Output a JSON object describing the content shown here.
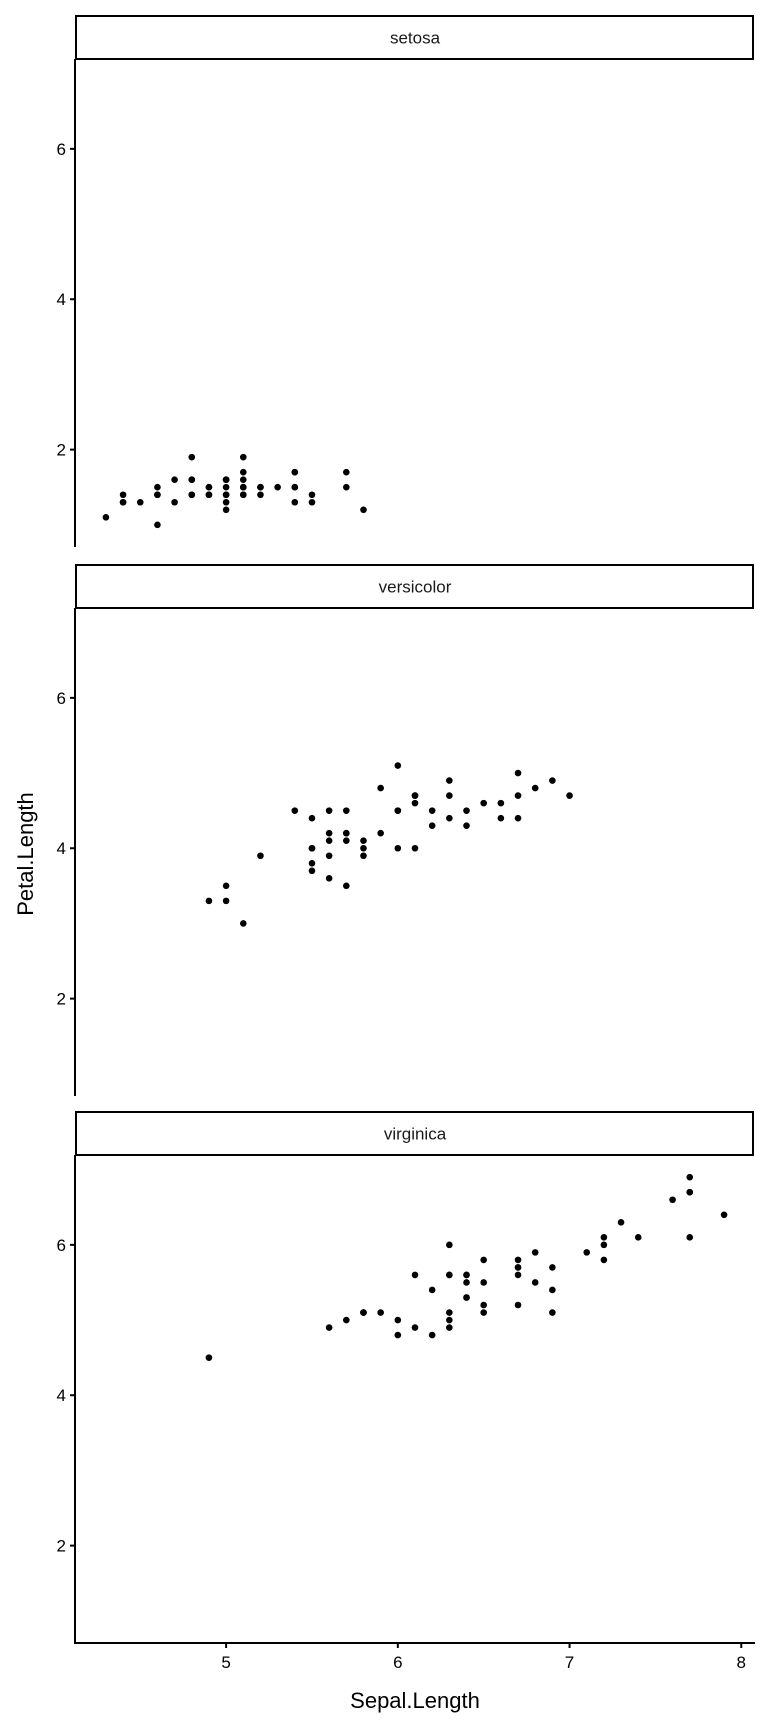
{
  "chart_data": {
    "type": "scatter",
    "xlabel": "Sepal.Length",
    "ylabel": "Petal.Length",
    "xlim": [
      4.12,
      8.08
    ],
    "ylim": [
      0.705,
      7.195
    ],
    "xticks": [
      "5",
      "6",
      "7",
      "8"
    ],
    "xtick_values": [
      5,
      6,
      7,
      8
    ],
    "yticks": [
      "2",
      "4",
      "6"
    ],
    "ytick_values": [
      2,
      4,
      6
    ],
    "grid": false,
    "point_color": "#000000",
    "panels": [
      {
        "name": "setosa",
        "x": [
          5.1,
          4.9,
          4.7,
          4.6,
          5.0,
          5.4,
          4.6,
          5.0,
          4.4,
          4.9,
          5.4,
          4.8,
          4.8,
          4.3,
          5.8,
          5.7,
          5.4,
          5.1,
          5.7,
          5.1,
          5.4,
          5.1,
          4.6,
          5.1,
          4.8,
          5.0,
          5.0,
          5.2,
          5.2,
          4.7,
          4.8,
          5.4,
          5.2,
          5.5,
          4.9,
          5.0,
          5.5,
          4.9,
          4.4,
          5.1,
          5.0,
          4.5,
          4.4,
          5.0,
          5.1,
          4.8,
          5.1,
          4.6,
          5.3,
          5.0
        ],
        "y": [
          1.4,
          1.4,
          1.3,
          1.5,
          1.4,
          1.7,
          1.4,
          1.5,
          1.4,
          1.5,
          1.5,
          1.6,
          1.4,
          1.1,
          1.2,
          1.5,
          1.3,
          1.4,
          1.7,
          1.5,
          1.7,
          1.5,
          1.0,
          1.7,
          1.9,
          1.6,
          1.6,
          1.5,
          1.4,
          1.6,
          1.6,
          1.5,
          1.5,
          1.4,
          1.5,
          1.2,
          1.3,
          1.4,
          1.3,
          1.5,
          1.3,
          1.3,
          1.3,
          1.6,
          1.9,
          1.4,
          1.6,
          1.4,
          1.5,
          1.4
        ]
      },
      {
        "name": "versicolor",
        "x": [
          7.0,
          6.4,
          6.9,
          5.5,
          6.5,
          5.7,
          6.3,
          4.9,
          6.6,
          5.2,
          5.0,
          5.9,
          6.0,
          6.1,
          5.6,
          6.7,
          5.6,
          5.8,
          6.2,
          5.6,
          5.9,
          6.1,
          6.3,
          6.1,
          6.4,
          6.6,
          6.8,
          6.7,
          6.0,
          5.7,
          5.5,
          5.5,
          5.8,
          6.0,
          5.4,
          6.0,
          6.7,
          6.3,
          5.6,
          5.5,
          5.5,
          6.1,
          5.8,
          5.0,
          5.6,
          5.7,
          5.7,
          6.2,
          5.1,
          5.7
        ],
        "y": [
          4.7,
          4.5,
          4.9,
          4.0,
          4.6,
          4.5,
          4.7,
          3.3,
          4.6,
          3.9,
          3.5,
          4.2,
          4.0,
          4.7,
          3.6,
          4.4,
          4.5,
          4.1,
          4.5,
          3.9,
          4.8,
          4.0,
          4.9,
          4.7,
          4.3,
          4.4,
          4.8,
          5.0,
          4.5,
          3.5,
          3.8,
          3.7,
          3.9,
          5.1,
          4.5,
          4.5,
          4.7,
          4.4,
          4.1,
          4.0,
          4.4,
          4.6,
          4.0,
          3.3,
          4.2,
          4.2,
          4.2,
          4.3,
          3.0,
          4.1
        ]
      },
      {
        "name": "virginica",
        "x": [
          6.3,
          5.8,
          7.1,
          6.3,
          6.5,
          7.6,
          4.9,
          7.3,
          6.7,
          7.2,
          6.5,
          6.4,
          6.8,
          5.7,
          5.8,
          6.4,
          6.5,
          7.7,
          7.7,
          6.0,
          6.9,
          5.6,
          7.7,
          6.3,
          6.7,
          7.2,
          6.2,
          6.1,
          6.4,
          7.2,
          7.4,
          7.9,
          6.4,
          6.3,
          6.1,
          7.7,
          6.3,
          6.4,
          6.0,
          6.9,
          6.7,
          6.9,
          5.8,
          6.8,
          6.7,
          6.7,
          6.3,
          6.5,
          6.2,
          5.9
        ],
        "y": [
          6.0,
          5.1,
          5.9,
          5.6,
          5.8,
          6.6,
          4.5,
          6.3,
          5.8,
          6.1,
          5.1,
          5.3,
          5.5,
          5.0,
          5.1,
          5.3,
          5.5,
          6.7,
          6.9,
          5.0,
          5.7,
          4.9,
          6.7,
          4.9,
          5.7,
          6.0,
          4.8,
          4.9,
          5.6,
          5.8,
          6.1,
          6.4,
          5.6,
          5.1,
          5.6,
          6.1,
          5.6,
          5.5,
          4.8,
          5.4,
          5.6,
          5.1,
          5.1,
          5.9,
          5.7,
          5.2,
          5.0,
          5.2,
          5.4,
          5.1
        ]
      }
    ]
  }
}
